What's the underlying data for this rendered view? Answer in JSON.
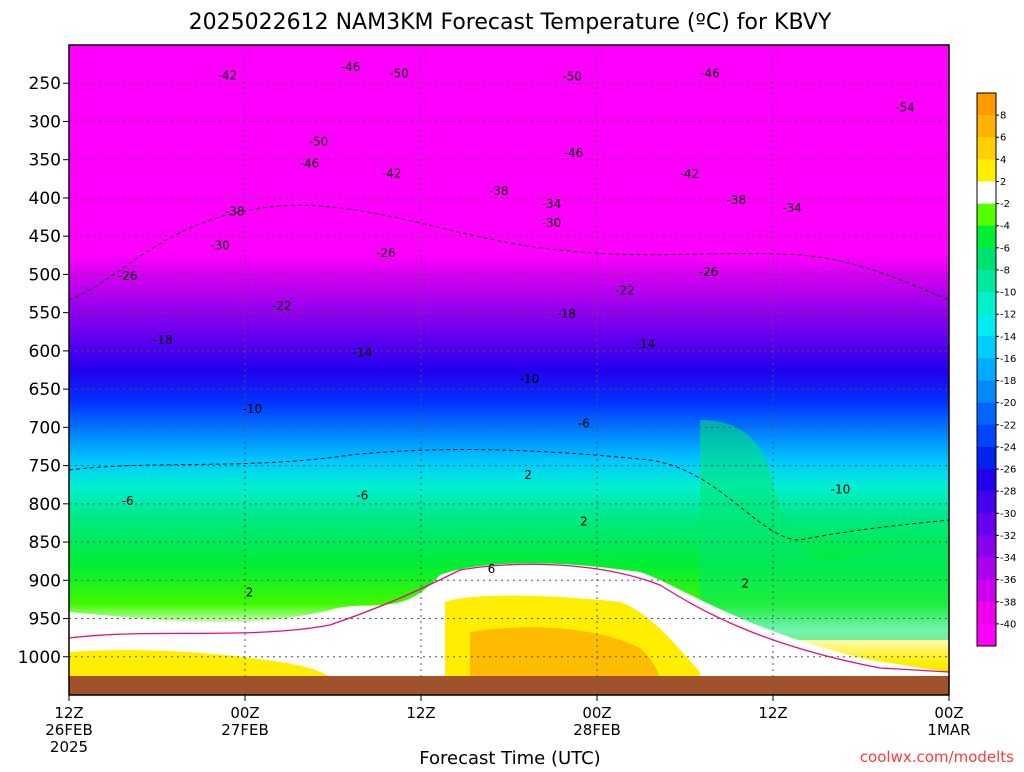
{
  "chart_data": {
    "type": "heatmap",
    "title": "2025022612 NAM3KM Forecast Temperature (ºC) for KBVY",
    "xlabel": "Forecast Time (UTC)",
    "ylabel": "",
    "credit": "coolwx.com/modelts",
    "y_ticks": [
      "250",
      "300",
      "350",
      "400",
      "450",
      "500",
      "550",
      "600",
      "650",
      "700",
      "750",
      "800",
      "850",
      "900",
      "950",
      "1000"
    ],
    "y_values": [
      250,
      300,
      350,
      400,
      450,
      500,
      550,
      600,
      650,
      700,
      750,
      800,
      850,
      900,
      950,
      1000
    ],
    "y_range": [
      200,
      1050
    ],
    "x_range_hours": [
      0,
      60
    ],
    "x_ticks": [
      {
        "hour": 0,
        "l1": "12Z",
        "l2": "26FEB",
        "l3": "2025"
      },
      {
        "hour": 12,
        "l1": "00Z",
        "l2": "27FEB",
        "l3": ""
      },
      {
        "hour": 24,
        "l1": "12Z",
        "l2": "",
        "l3": ""
      },
      {
        "hour": 36,
        "l1": "00Z",
        "l2": "28FEB",
        "l3": ""
      },
      {
        "hour": 48,
        "l1": "12Z",
        "l2": "",
        "l3": ""
      },
      {
        "hour": 60,
        "l1": "00Z",
        "l2": "1MAR",
        "l3": ""
      }
    ],
    "colorbar": {
      "labels": [
        "8",
        "6",
        "4",
        "2",
        "-2",
        "-4",
        "-6",
        "-8",
        "-10",
        "-12",
        "-14",
        "-16",
        "-18",
        "-20",
        "-22",
        "-24",
        "-26",
        "-28",
        "-30",
        "-32",
        "-34",
        "-36",
        "-38",
        "-40"
      ],
      "colors": [
        "#ff9900",
        "#ffb300",
        "#ffd000",
        "#ffee00",
        "#ffffff",
        "#55ff00",
        "#00ee33",
        "#00e070",
        "#00e8a0",
        "#00f0cc",
        "#00ecee",
        "#00ccff",
        "#00aaff",
        "#0088ff",
        "#0066ff",
        "#0044ff",
        "#0022ee",
        "#2200ee",
        "#4400ee",
        "#6600ee",
        "#8800ee",
        "#aa00ee",
        "#cc00ee",
        "#ee00ee",
        "#ff00ff"
      ]
    },
    "contour_labels": [
      {
        "v": "-46",
        "h": 19.2,
        "p": 229
      },
      {
        "v": "-42",
        "h": 10.8,
        "p": 240
      },
      {
        "v": "-50",
        "h": 22.5,
        "p": 237
      },
      {
        "v": "-50",
        "h": 34.3,
        "p": 241
      },
      {
        "v": "-46",
        "h": 43.7,
        "p": 237
      },
      {
        "v": "-54",
        "h": 57.0,
        "p": 282
      },
      {
        "v": "-50",
        "h": 17.0,
        "p": 326
      },
      {
        "v": "-46",
        "h": 16.4,
        "p": 355
      },
      {
        "v": "-46",
        "h": 34.4,
        "p": 341
      },
      {
        "v": "-42",
        "h": 22.0,
        "p": 368
      },
      {
        "v": "-42",
        "h": 42.3,
        "p": 369
      },
      {
        "v": "-38",
        "h": 29.3,
        "p": 391
      },
      {
        "v": "-34",
        "h": 32.9,
        "p": 408
      },
      {
        "v": "-38",
        "h": 45.5,
        "p": 403
      },
      {
        "v": "-34",
        "h": 49.3,
        "p": 413
      },
      {
        "v": "-38",
        "h": 11.3,
        "p": 418
      },
      {
        "v": "-30",
        "h": 32.9,
        "p": 433
      },
      {
        "v": "-30",
        "h": 10.3,
        "p": 462
      },
      {
        "v": "-26",
        "h": 21.6,
        "p": 472
      },
      {
        "v": "-26",
        "h": 4.0,
        "p": 502
      },
      {
        "v": "-26",
        "h": 43.6,
        "p": 497
      },
      {
        "v": "-22",
        "h": 37.9,
        "p": 521
      },
      {
        "v": "-22",
        "h": 14.5,
        "p": 541
      },
      {
        "v": "-18",
        "h": 33.9,
        "p": 552
      },
      {
        "v": "-18",
        "h": 6.4,
        "p": 586
      },
      {
        "v": "-14",
        "h": 39.3,
        "p": 591
      },
      {
        "v": "-14",
        "h": 20.0,
        "p": 602
      },
      {
        "v": "-10",
        "h": 31.4,
        "p": 637
      },
      {
        "v": "-10",
        "h": 12.5,
        "p": 676
      },
      {
        "v": "-6",
        "h": 35.1,
        "p": 695
      },
      {
        "v": "-6",
        "h": 4.0,
        "p": 796
      },
      {
        "v": "-6",
        "h": 20.0,
        "p": 789
      },
      {
        "v": "2",
        "h": 31.3,
        "p": 762
      },
      {
        "v": "2",
        "h": 35.1,
        "p": 823
      },
      {
        "v": "-10",
        "h": 52.6,
        "p": 781
      },
      {
        "v": "6",
        "h": 28.8,
        "p": 885
      },
      {
        "v": "2",
        "h": 46.1,
        "p": 904
      },
      {
        "v": "2",
        "h": 12.3,
        "p": 916
      }
    ]
  }
}
